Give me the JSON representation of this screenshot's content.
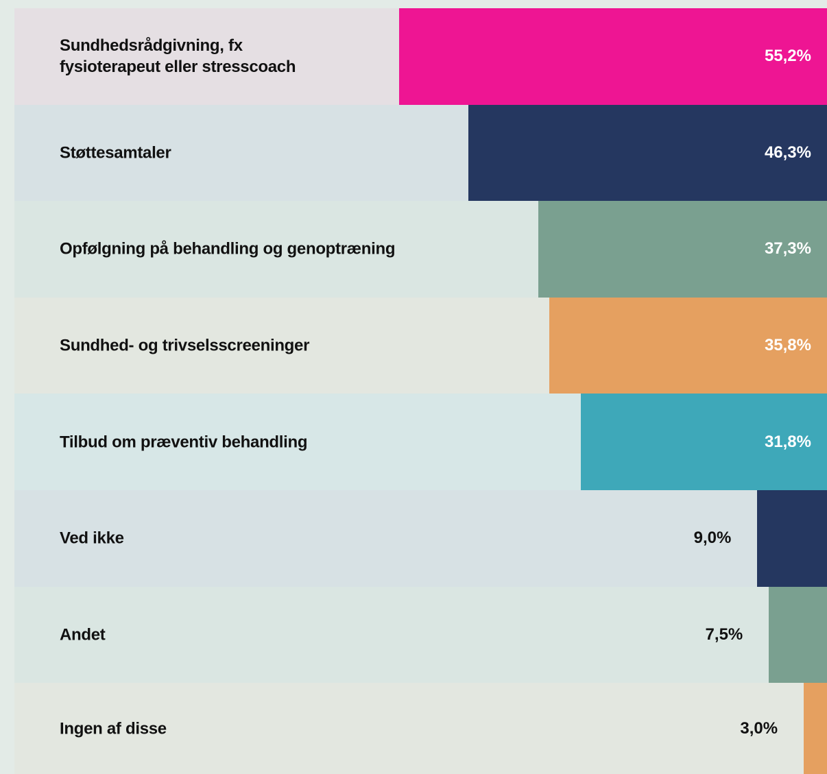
{
  "chart_data": {
    "type": "barh",
    "categories": [
      "Sundhedsrådgivning, fx\nfysioterapeut eller stresscoach",
      "Støttesamtaler",
      "Opfølgning på behandling og genoptræning",
      "Sundhed- og trivselsscreeninger",
      "Tilbud om præventiv behandling",
      "Ved ikke",
      "Andet",
      "Ingen af disse"
    ],
    "values": [
      55.2,
      46.3,
      37.3,
      35.8,
      31.8,
      9.0,
      7.5,
      3.0
    ],
    "value_labels": [
      "55,2%",
      "46,3%",
      "37,3%",
      "35,8%",
      "31,8%",
      "9,0%",
      "7,5%",
      "3,0%"
    ],
    "colors": [
      "#ee1593",
      "#253760",
      "#7aa090",
      "#e5a060",
      "#3ea8b9",
      "#253760",
      "#7aa090",
      "#e5a060"
    ],
    "xlim": [
      0,
      100
    ]
  }
}
